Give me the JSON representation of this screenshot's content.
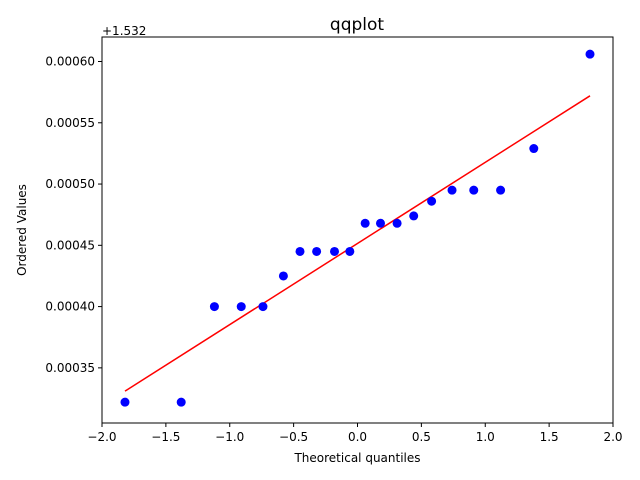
{
  "chart_data": {
    "type": "scatter",
    "title": "qqplot",
    "xlabel": "Theoretical quantiles",
    "ylabel": "Ordered Values",
    "y_offset_label": "+1.532",
    "xlim": [
      -2.0,
      2.0
    ],
    "ylim": [
      0.000305,
      0.00062
    ],
    "xticks": [
      -2.0,
      -1.5,
      -1.0,
      -0.5,
      0.0,
      0.5,
      1.0,
      1.5,
      2.0
    ],
    "xtick_labels": [
      "−2.0",
      "−1.5",
      "−1.0",
      "−0.5",
      "0.0",
      "0.5",
      "1.0",
      "1.5",
      "2.0"
    ],
    "yticks": [
      0.00035,
      0.0004,
      0.00045,
      0.0005,
      0.00055,
      0.0006
    ],
    "ytick_labels": [
      "0.00035",
      "0.00040",
      "0.00045",
      "0.00050",
      "0.00055",
      "0.00060"
    ],
    "grid": false,
    "points": {
      "x": [
        -1.82,
        -1.38,
        -1.12,
        -0.91,
        -0.74,
        -0.58,
        -0.45,
        -0.32,
        -0.18,
        -0.06,
        0.06,
        0.18,
        0.31,
        0.44,
        0.58,
        0.74,
        0.91,
        1.12,
        1.38,
        1.82
      ],
      "y": [
        0.000322,
        0.000322,
        0.0004,
        0.0004,
        0.0004,
        0.000425,
        0.000445,
        0.000445,
        0.000445,
        0.000445,
        0.000468,
        0.000468,
        0.000468,
        0.000474,
        0.000486,
        0.000495,
        0.000495,
        0.000495,
        0.000529,
        0.000606
      ],
      "color": "#0000ff"
    },
    "fit_line": {
      "x": [
        -1.82,
        1.82
      ],
      "y": [
        0.000331,
        0.000572
      ],
      "color": "#ff0000"
    }
  }
}
